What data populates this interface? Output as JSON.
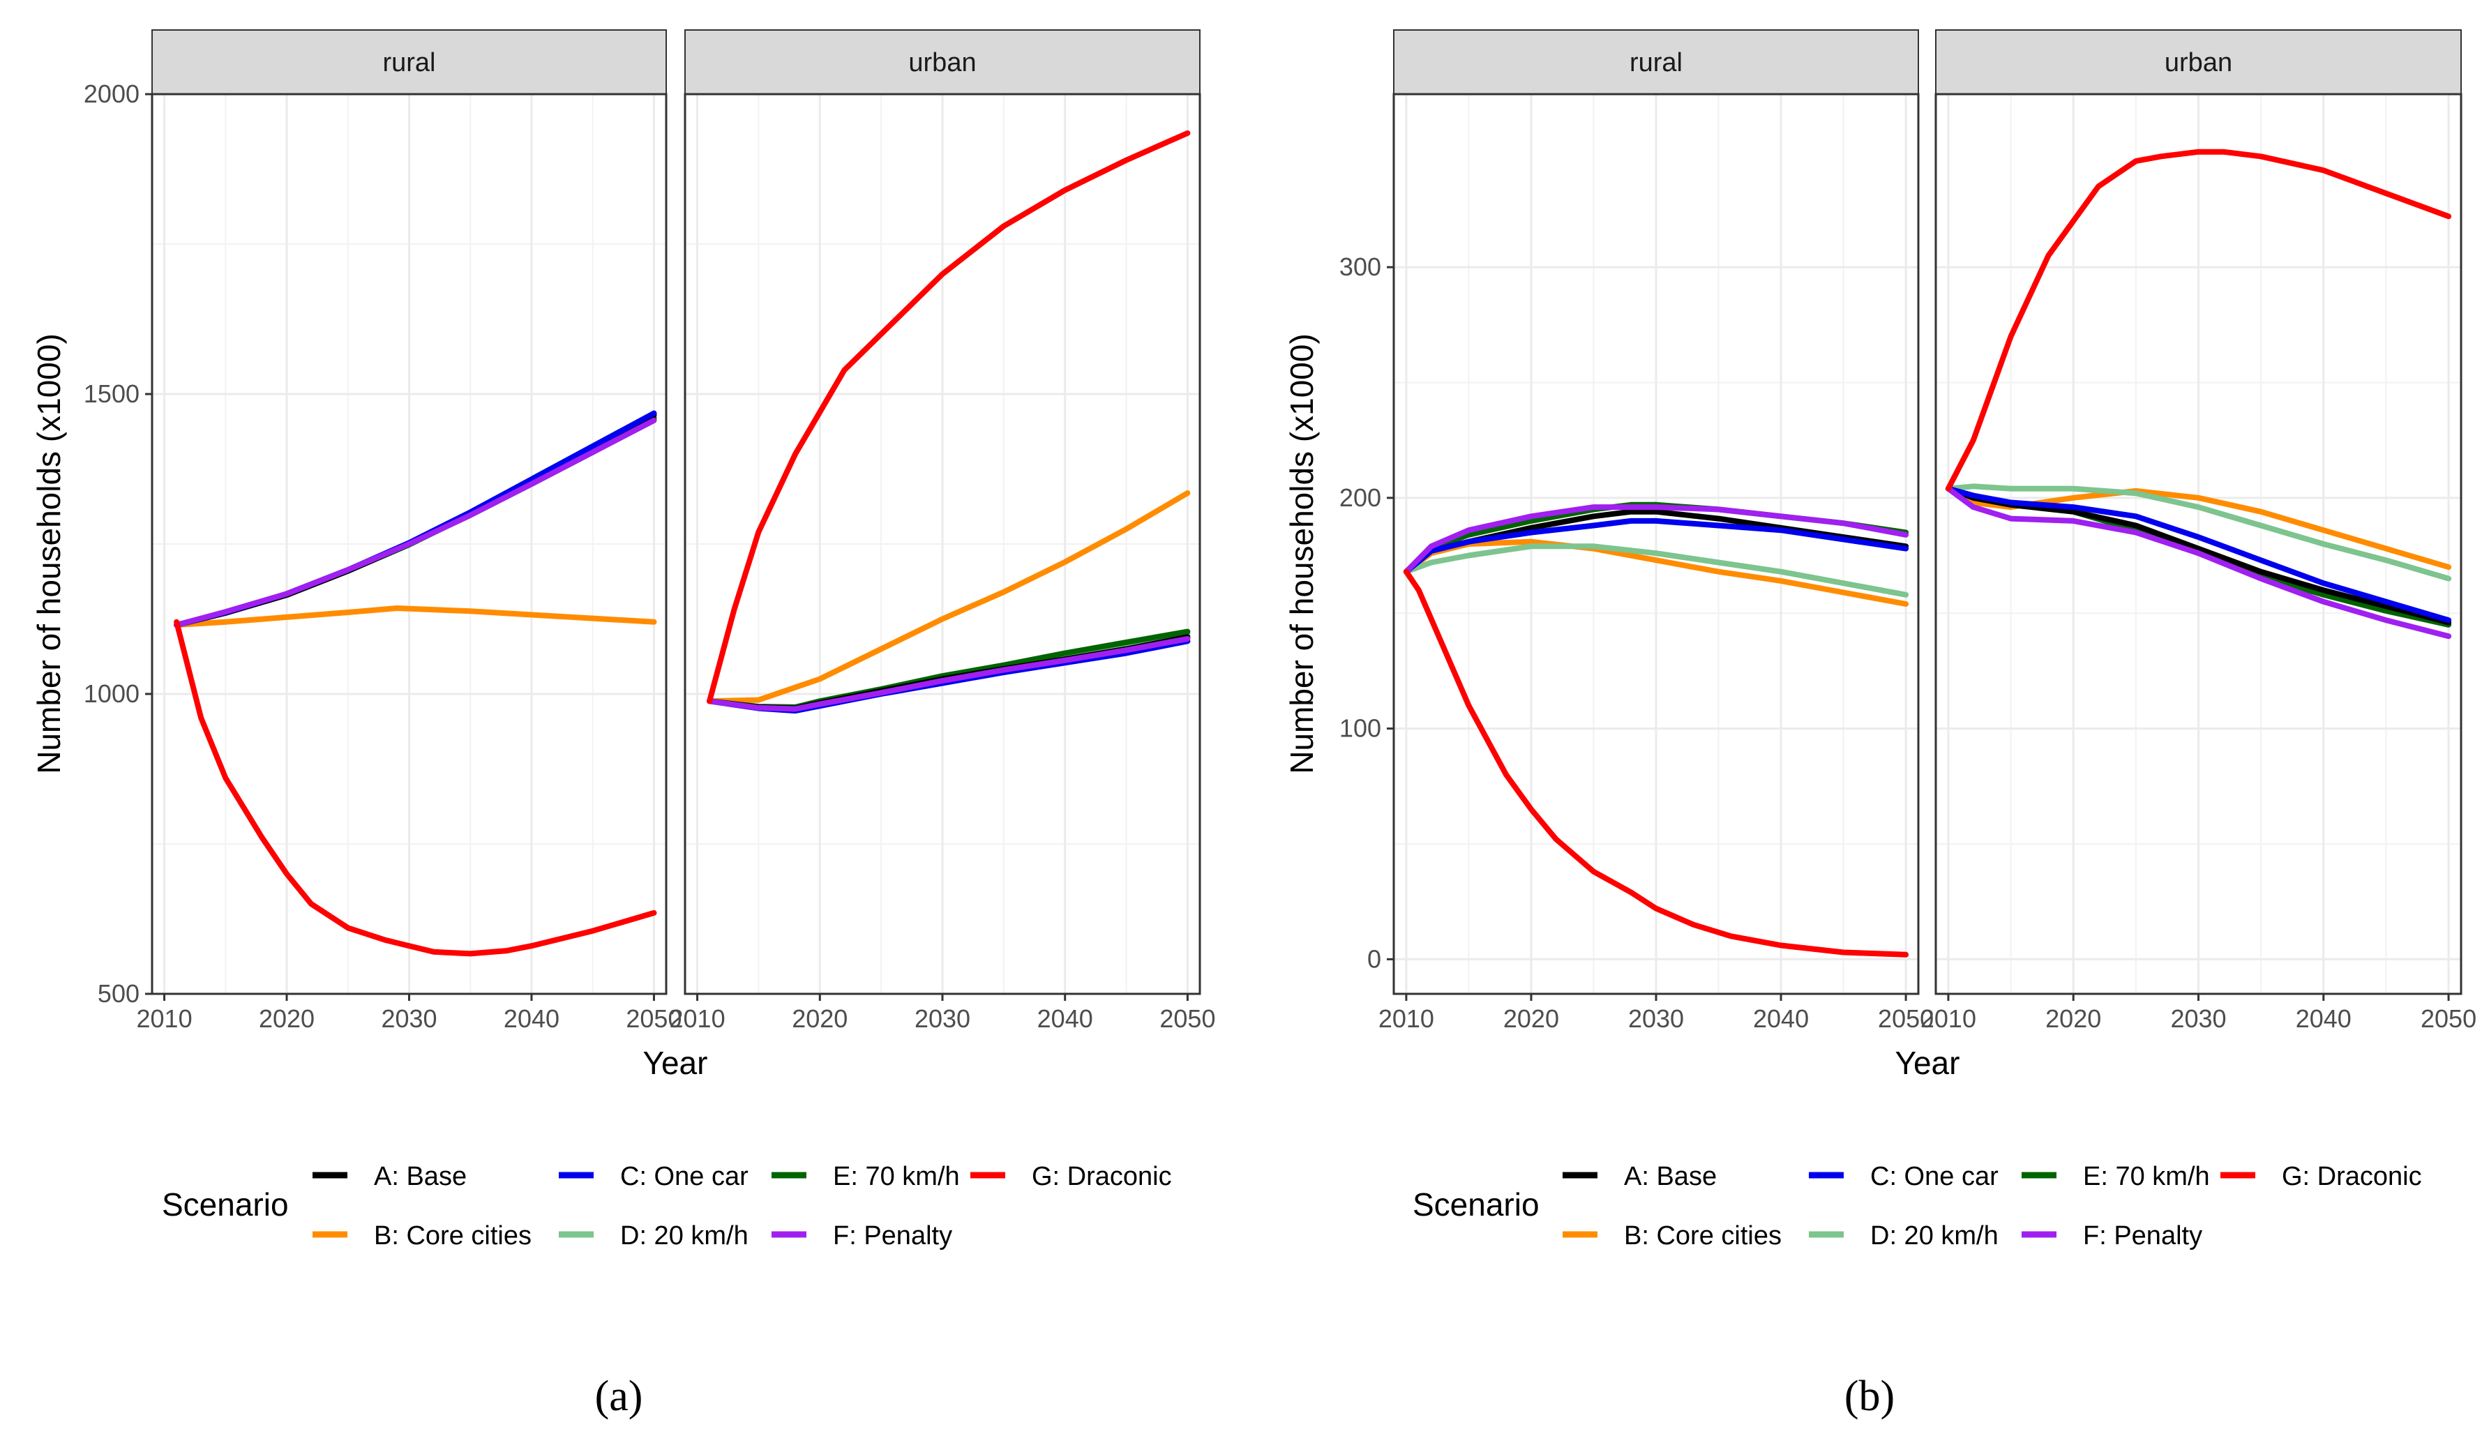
{
  "chart_data": [
    {
      "type": "line",
      "id": "a",
      "caption": "(a)",
      "xlabel": "Year",
      "ylabel": "Number of households (x1000)",
      "xlim": [
        2009,
        2051
      ],
      "ylim": [
        500,
        2000
      ],
      "xticks": [
        2010,
        2020,
        2030,
        2040,
        2050
      ],
      "yticks": [
        500,
        1000,
        1500,
        2000
      ],
      "panels": [
        {
          "label": "rural",
          "series": [
            {
              "key": "A",
              "x": [
                2011,
                2015,
                2020,
                2025,
                2030,
                2035,
                2040,
                2045,
                2050
              ],
              "values": [
                1115,
                1135,
                1165,
                1205,
                1250,
                1300,
                1355,
                1410,
                1465
              ]
            },
            {
              "key": "B",
              "x": [
                2011,
                2015,
                2020,
                2025,
                2029,
                2035,
                2040,
                2045,
                2050
              ],
              "values": [
                1115,
                1120,
                1128,
                1136,
                1143,
                1138,
                1132,
                1126,
                1120
              ]
            },
            {
              "key": "C",
              "x": [
                2011,
                2015,
                2020,
                2025,
                2030,
                2035,
                2040,
                2045,
                2050
              ],
              "values": [
                1115,
                1136,
                1167,
                1207,
                1252,
                1303,
                1358,
                1413,
                1468
              ]
            },
            {
              "key": "D",
              "x": [
                2011,
                2015,
                2020,
                2025,
                2030,
                2035,
                2040,
                2045,
                2050
              ],
              "values": [
                1115,
                1135,
                1166,
                1206,
                1250,
                1298,
                1350,
                1403,
                1458
              ]
            },
            {
              "key": "E",
              "x": [
                2011,
                2015,
                2020,
                2025,
                2030,
                2035,
                2040,
                2045,
                2050
              ],
              "values": [
                1115,
                1135,
                1165,
                1205,
                1249,
                1299,
                1352,
                1406,
                1460
              ]
            },
            {
              "key": "F",
              "x": [
                2011,
                2015,
                2020,
                2025,
                2030,
                2035,
                2040,
                2045,
                2050
              ],
              "values": [
                1115,
                1137,
                1167,
                1207,
                1250,
                1298,
                1350,
                1403,
                1456
              ]
            },
            {
              "key": "G",
              "x": [
                2011,
                2013,
                2015,
                2018,
                2020,
                2022,
                2025,
                2028,
                2030,
                2032,
                2035,
                2038,
                2040,
                2045,
                2050
              ],
              "values": [
                1120,
                960,
                860,
                760,
                700,
                650,
                610,
                590,
                580,
                570,
                567,
                572,
                580,
                605,
                635
              ]
            }
          ]
        },
        {
          "label": "urban",
          "series": [
            {
              "key": "A",
              "x": [
                2011,
                2015,
                2018,
                2020,
                2025,
                2030,
                2035,
                2040,
                2045,
                2050
              ],
              "values": [
                988,
                978,
                976,
                985,
                1005,
                1025,
                1042,
                1058,
                1075,
                1095
              ]
            },
            {
              "key": "B",
              "x": [
                2011,
                2015,
                2020,
                2025,
                2030,
                2035,
                2040,
                2045,
                2050
              ],
              "values": [
                988,
                990,
                1025,
                1075,
                1125,
                1170,
                1220,
                1275,
                1335
              ]
            },
            {
              "key": "C",
              "x": [
                2011,
                2015,
                2018,
                2020,
                2025,
                2030,
                2035,
                2040,
                2045,
                2050
              ],
              "values": [
                988,
                976,
                972,
                980,
                1000,
                1018,
                1036,
                1052,
                1068,
                1088
              ]
            },
            {
              "key": "D",
              "x": [
                2011,
                2015,
                2018,
                2020,
                2025,
                2030,
                2035,
                2040,
                2045,
                2050
              ],
              "values": [
                988,
                978,
                976,
                986,
                1006,
                1027,
                1046,
                1065,
                1082,
                1100
              ]
            },
            {
              "key": "E",
              "x": [
                2011,
                2015,
                2018,
                2020,
                2025,
                2030,
                2035,
                2040,
                2045,
                2050
              ],
              "values": [
                988,
                979,
                978,
                988,
                1008,
                1030,
                1048,
                1068,
                1086,
                1104
              ]
            },
            {
              "key": "F",
              "x": [
                2011,
                2015,
                2018,
                2020,
                2025,
                2030,
                2035,
                2040,
                2045,
                2050
              ],
              "values": [
                988,
                977,
                975,
                983,
                1002,
                1022,
                1040,
                1056,
                1073,
                1092
              ]
            },
            {
              "key": "G",
              "x": [
                2011,
                2013,
                2015,
                2018,
                2020,
                2022,
                2025,
                2030,
                2035,
                2040,
                2045,
                2050
              ],
              "values": [
                988,
                1140,
                1270,
                1400,
                1470,
                1540,
                1600,
                1700,
                1780,
                1840,
                1890,
                1935
              ]
            }
          ]
        }
      ]
    },
    {
      "type": "line",
      "id": "b",
      "caption": "(b)",
      "xlabel": "Year",
      "ylabel": "Number of households (x1000)",
      "xlim": [
        2009,
        2051
      ],
      "ylim": [
        -15,
        375
      ],
      "xticks": [
        2010,
        2020,
        2030,
        2040,
        2050
      ],
      "yticks": [
        0,
        100,
        200,
        300
      ],
      "panels": [
        {
          "label": "rural",
          "series": [
            {
              "key": "A",
              "x": [
                2010,
                2012,
                2015,
                2020,
                2025,
                2028,
                2030,
                2035,
                2040,
                2045,
                2050
              ],
              "values": [
                168,
                177,
                181,
                187,
                192,
                194,
                194,
                191,
                187,
                183,
                179
              ]
            },
            {
              "key": "B",
              "x": [
                2010,
                2012,
                2015,
                2020,
                2025,
                2030,
                2035,
                2040,
                2045,
                2050
              ],
              "values": [
                168,
                176,
                180,
                181,
                178,
                173,
                168,
                164,
                159,
                154
              ]
            },
            {
              "key": "C",
              "x": [
                2010,
                2012,
                2015,
                2020,
                2025,
                2028,
                2030,
                2035,
                2040,
                2045,
                2050
              ],
              "values": [
                168,
                177,
                181,
                185,
                188,
                190,
                190,
                188,
                186,
                182,
                178
              ]
            },
            {
              "key": "D",
              "x": [
                2010,
                2012,
                2015,
                2020,
                2025,
                2030,
                2035,
                2040,
                2045,
                2050
              ],
              "values": [
                168,
                172,
                175,
                179,
                179,
                176,
                172,
                168,
                163,
                158
              ]
            },
            {
              "key": "E",
              "x": [
                2010,
                2012,
                2015,
                2020,
                2025,
                2028,
                2030,
                2035,
                2040,
                2045,
                2050
              ],
              "values": [
                168,
                178,
                184,
                190,
                195,
                197,
                197,
                195,
                192,
                189,
                185
              ]
            },
            {
              "key": "F",
              "x": [
                2010,
                2012,
                2015,
                2020,
                2025,
                2030,
                2035,
                2040,
                2045,
                2050
              ],
              "values": [
                168,
                179,
                186,
                192,
                196,
                196,
                195,
                192,
                189,
                184
              ]
            },
            {
              "key": "G",
              "x": [
                2010,
                2011,
                2013,
                2015,
                2018,
                2020,
                2022,
                2025,
                2028,
                2030,
                2033,
                2036,
                2040,
                2045,
                2050
              ],
              "values": [
                168,
                160,
                135,
                110,
                80,
                65,
                52,
                38,
                29,
                22,
                15,
                10,
                6,
                3,
                2
              ]
            }
          ]
        },
        {
          "label": "urban",
          "series": [
            {
              "key": "A",
              "x": [
                2010,
                2012,
                2015,
                2020,
                2025,
                2030,
                2035,
                2040,
                2045,
                2050
              ],
              "values": [
                204,
                200,
                197,
                194,
                188,
                178,
                168,
                160,
                153,
                146
              ]
            },
            {
              "key": "B",
              "x": [
                2010,
                2012,
                2015,
                2020,
                2025,
                2030,
                2035,
                2040,
                2045,
                2050
              ],
              "values": [
                204,
                198,
                196,
                200,
                203,
                200,
                194,
                186,
                178,
                170
              ]
            },
            {
              "key": "C",
              "x": [
                2010,
                2012,
                2015,
                2020,
                2025,
                2030,
                2035,
                2040,
                2045,
                2050
              ],
              "values": [
                204,
                201,
                198,
                196,
                192,
                183,
                173,
                163,
                155,
                147
              ]
            },
            {
              "key": "D",
              "x": [
                2010,
                2012,
                2015,
                2020,
                2025,
                2030,
                2035,
                2040,
                2045,
                2050
              ],
              "values": [
                204,
                205,
                204,
                204,
                202,
                196,
                188,
                180,
                173,
                165
              ]
            },
            {
              "key": "E",
              "x": [
                2010,
                2012,
                2015,
                2020,
                2025,
                2030,
                2035,
                2040,
                2045,
                2050
              ],
              "values": [
                204,
                200,
                197,
                194,
                186,
                176,
                166,
                158,
                151,
                145
              ]
            },
            {
              "key": "F",
              "x": [
                2010,
                2012,
                2015,
                2020,
                2025,
                2030,
                2035,
                2040,
                2045,
                2050
              ],
              "values": [
                204,
                196,
                191,
                190,
                185,
                176,
                165,
                155,
                147,
                140
              ]
            },
            {
              "key": "G",
              "x": [
                2010,
                2012,
                2015,
                2018,
                2020,
                2022,
                2025,
                2027,
                2030,
                2032,
                2035,
                2040,
                2045,
                2050
              ],
              "values": [
                204,
                225,
                270,
                305,
                320,
                335,
                346,
                348,
                350,
                350,
                348,
                342,
                332,
                322
              ]
            }
          ]
        }
      ]
    }
  ],
  "legend": {
    "title": "Scenario",
    "entries": [
      {
        "key": "A",
        "label": "A: Base",
        "color": "#000000"
      },
      {
        "key": "B",
        "label": "B: Core cities",
        "color": "#FF8C00"
      },
      {
        "key": "C",
        "label": "C: One car",
        "color": "#0000EE"
      },
      {
        "key": "D",
        "label": "D: 20 km/h",
        "color": "#7DC48E"
      },
      {
        "key": "E",
        "label": "E: 70 km/h",
        "color": "#006400"
      },
      {
        "key": "F",
        "label": "F: Penalty",
        "color": "#A020F0"
      },
      {
        "key": "G",
        "label": "G: Draconic",
        "color": "#FF0000"
      }
    ],
    "draw_order": [
      "B",
      "D",
      "E",
      "A",
      "C",
      "F",
      "G"
    ]
  }
}
